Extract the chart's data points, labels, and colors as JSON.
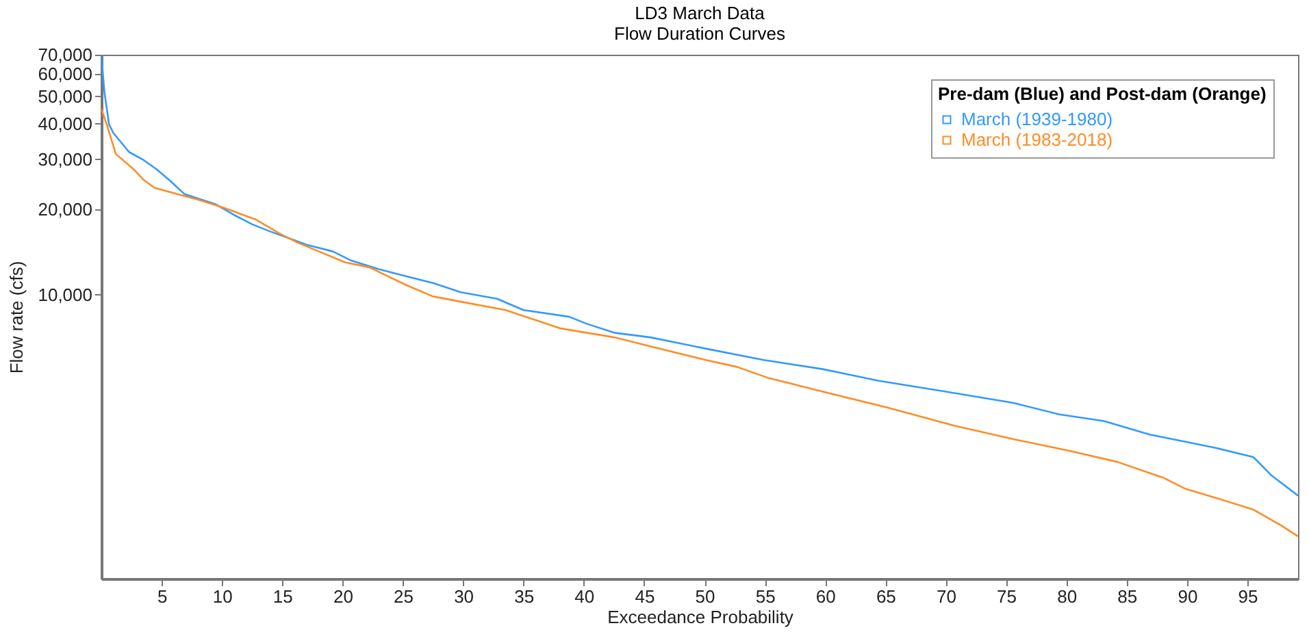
{
  "chart_data": {
    "type": "line",
    "title": "LD3 March Data",
    "subtitle": "Flow Duration Curves",
    "xlabel": "Exceedance Probability",
    "ylabel": "Flow rate (cfs)",
    "legend_title": "Pre-dam (Blue) and Post-dam (Orange)",
    "legend": "top right",
    "grid": false,
    "marker": "none",
    "line_style": "solid",
    "log": "y",
    "xlim": [
      0,
      99.2
    ],
    "xticks": [
      5,
      10,
      15,
      20,
      25,
      30,
      35,
      40,
      45,
      50,
      55,
      60,
      65,
      70,
      75,
      80,
      85,
      90,
      95
    ],
    "ylim": [
      1000,
      70000
    ],
    "yticks": [
      {
        "value": 10000,
        "label": "10,000"
      },
      {
        "value": 20000,
        "label": "20,000"
      },
      {
        "value": 30000,
        "label": "30,000"
      },
      {
        "value": 40000,
        "label": "40,000"
      },
      {
        "value": 50000,
        "label": "50,000"
      },
      {
        "value": 60000,
        "label": "60,000"
      },
      {
        "value": 70000,
        "label": "70,000"
      }
    ],
    "series": [
      {
        "name": "March (1939-1980)",
        "color": "#3399ff",
        "x": [
          0,
          0.26,
          0.64,
          1.0,
          2.3,
          3.5,
          4.6,
          5.7,
          6.9,
          7.9,
          9.5,
          10.9,
          12.5,
          14.0,
          15.4,
          17.0,
          19.2,
          20.7,
          23.0,
          25.3,
          27.5,
          29.8,
          32.8,
          35.0,
          38.8,
          40.2,
          42.5,
          45.5,
          50.1,
          54.9,
          59.8,
          64.3,
          70.0,
          75.6,
          79.4,
          83.1,
          86.9,
          88.8,
          92.5,
          95.5,
          97.0,
          99.2
        ],
        "values": [
          70000,
          51600,
          39800,
          37100,
          31800,
          29800,
          27600,
          25200,
          22600,
          21900,
          20800,
          19200,
          17700,
          16700,
          15900,
          15000,
          14200,
          13200,
          12300,
          11600,
          11000,
          10200,
          9680,
          8830,
          8360,
          7910,
          7350,
          7080,
          6460,
          5890,
          5470,
          4990,
          4560,
          4160,
          3790,
          3590,
          3220,
          3100,
          2880,
          2680,
          2310,
          1960
        ]
      },
      {
        "name": "March (1983-2018)",
        "color": "#ff8c26",
        "x": [
          0,
          0.45,
          1.2,
          2.7,
          3.5,
          4.4,
          6.5,
          7.9,
          10.2,
          12.8,
          14.7,
          16.2,
          17.7,
          20.2,
          22.2,
          25.3,
          27.5,
          30.5,
          33.5,
          38.0,
          42.5,
          45.5,
          50.1,
          52.7,
          55.3,
          59.8,
          65.1,
          70.7,
          75.6,
          80.1,
          84.2,
          88.0,
          89.9,
          92.5,
          95.5,
          97.8,
          99.2
        ],
        "values": [
          45200,
          39800,
          31300,
          27600,
          25400,
          23800,
          22500,
          21700,
          20200,
          18400,
          16500,
          15300,
          14400,
          13000,
          12500,
          10800,
          9860,
          9330,
          8830,
          7620,
          7080,
          6580,
          5890,
          5570,
          5090,
          4560,
          4010,
          3460,
          3100,
          2830,
          2580,
          2270,
          2070,
          1920,
          1750,
          1540,
          1410
        ]
      }
    ]
  }
}
